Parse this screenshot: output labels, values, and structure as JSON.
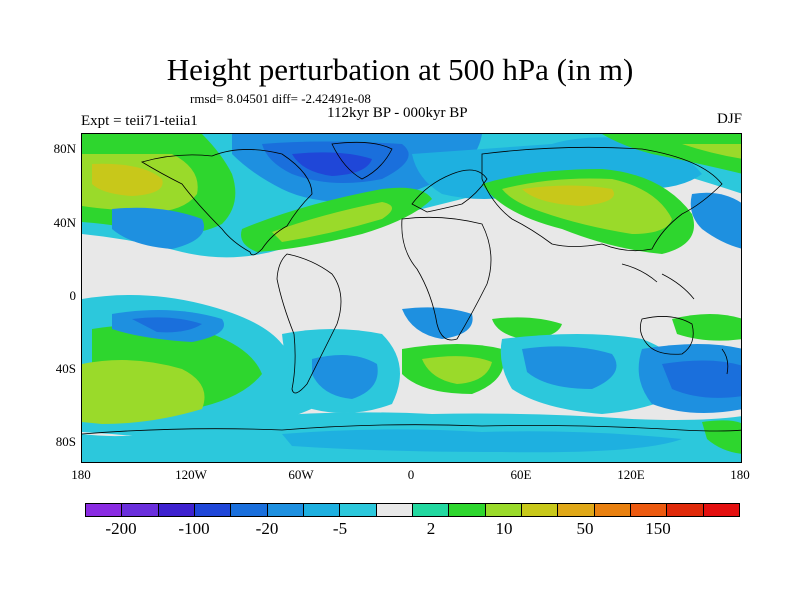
{
  "title": "Height perturbation at 500 hPa (in m)",
  "stats_line": "rmsd= 8.04501 diff= -2.42491e-08",
  "subtitle": "112kyr BP - 000kyr BP",
  "experiment": "Expt = teii71-teiia1",
  "season": "DJF",
  "map": {
    "projection": "cylindrical equidistant",
    "lat_range": [
      -90,
      90
    ],
    "lon_range": [
      -180,
      180
    ],
    "lat_ticks": [
      "80N",
      "40N",
      "0",
      "40S",
      "80S"
    ],
    "lon_ticks": [
      "180",
      "120W",
      "60W",
      "0",
      "60E",
      "120E",
      "180"
    ],
    "background_color": "#e8e8e8",
    "coastline_color": "#000000"
  },
  "colorbar": {
    "colors": [
      "#8a2be2",
      "#6a2fdc",
      "#3e22cf",
      "#1f47d8",
      "#1a6fdc",
      "#1e90e0",
      "#1eb0e0",
      "#2cc8dc",
      "#e8e8e8",
      "#22d8a0",
      "#2ed62e",
      "#9ada2a",
      "#c8c81a",
      "#e0a818",
      "#e88010",
      "#ec5a10",
      "#e02a0a",
      "#e41010"
    ],
    "labels": [
      "-200",
      "-100",
      "-20",
      "-5",
      "2",
      "10",
      "50",
      "150"
    ]
  }
}
